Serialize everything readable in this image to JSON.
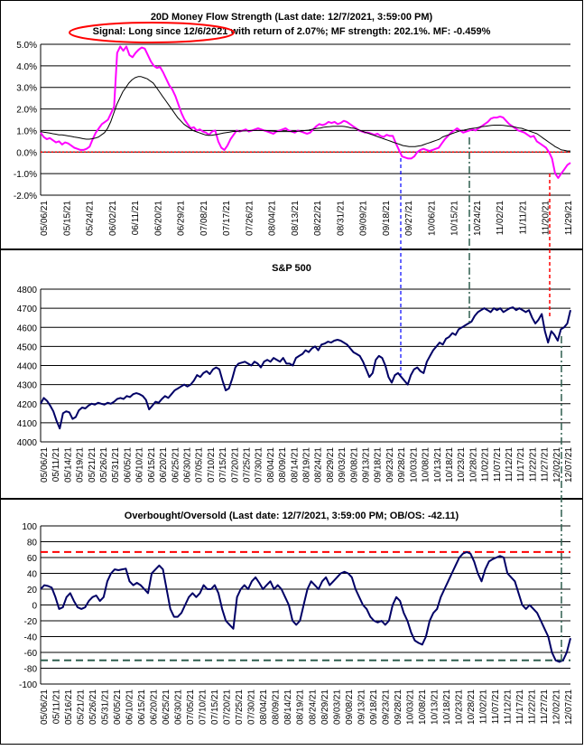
{
  "chart_data": [
    {
      "type": "line",
      "title": "20D Money Flow Strength (Last date: 12/7/2021, 3:59:00 PM)",
      "subtitle": "Signal: Long since 12/6/2021 with return of 2.07%; MF strength: 202.1%. MF: -0.459%",
      "ylim": [
        -2.0,
        5.0
      ],
      "y_ticks": [
        "-2.0%",
        "-1.0%",
        "0.0%",
        "1.0%",
        "2.0%",
        "3.0%",
        "4.0%",
        "5.0%"
      ],
      "x_ticks": [
        "05/06/21",
        "05/15/21",
        "05/24/21",
        "06/02/21",
        "06/11/21",
        "06/20/21",
        "06/29/21",
        "07/08/21",
        "07/17/21",
        "07/26/21",
        "08/04/21",
        "08/13/21",
        "08/22/21",
        "08/31/21",
        "09/09/21",
        "09/18/21",
        "09/27/21",
        "10/06/21",
        "10/15/21",
        "10/24/21",
        "11/02/21",
        "11/11/21",
        "11/20/21",
        "11/29/21"
      ],
      "zero_line": 0.0,
      "series": [
        {
          "color": "#ff00ff",
          "values": [
            0.9,
            0.7,
            0.6,
            0.65,
            0.55,
            0.45,
            0.5,
            0.35,
            0.45,
            0.4,
            0.3,
            0.2,
            0.15,
            0.1,
            0.1,
            0.15,
            0.25,
            0.6,
            0.9,
            1.1,
            1.3,
            1.4,
            1.5,
            1.8,
            2.1,
            4.6,
            4.9,
            4.7,
            4.9,
            4.5,
            4.4,
            4.6,
            4.75,
            4.85,
            4.8,
            4.5,
            4.2,
            4.0,
            3.9,
            3.95,
            3.7,
            3.4,
            3.1,
            2.9,
            2.6,
            2.2,
            1.8,
            1.5,
            1.3,
            1.1,
            1.15,
            1.0,
            1.05,
            0.95,
            0.9,
            0.8,
            0.95,
            1.0,
            0.5,
            0.2,
            0.1,
            0.3,
            0.6,
            0.8,
            1.0,
            0.95,
            1.0,
            1.05,
            0.95,
            1.0,
            1.05,
            1.1,
            1.05,
            1.0,
            0.95,
            0.9,
            0.85,
            0.95,
            1.0,
            1.05,
            1.1,
            1.0,
            0.95,
            0.9,
            1.0,
            0.95,
            0.9,
            0.85,
            0.9,
            1.05,
            1.2,
            1.3,
            1.25,
            1.3,
            1.4,
            1.35,
            1.4,
            1.3,
            1.35,
            1.45,
            1.4,
            1.3,
            1.2,
            1.1,
            1.0,
            0.95,
            0.9,
            0.9,
            0.85,
            0.8,
            0.85,
            0.75,
            0.7,
            0.8,
            0.75,
            0.75,
            0.4,
            0.1,
            -0.2,
            -0.25,
            -0.3,
            -0.3,
            -0.2,
            0.0,
            0.1,
            0.15,
            0.1,
            0.05,
            0.1,
            0.15,
            0.2,
            0.4,
            0.6,
            0.75,
            0.9,
            1.0,
            1.1,
            1.0,
            0.9,
            0.95,
            1.0,
            1.05,
            1.0,
            1.1,
            1.2,
            1.3,
            1.4,
            1.55,
            1.6,
            1.6,
            1.65,
            1.6,
            1.45,
            1.3,
            1.2,
            1.1,
            1.0,
            0.95,
            0.9,
            0.8,
            0.7,
            0.75,
            0.5,
            0.4,
            0.3,
            0.2,
            0.0,
            -0.3,
            -1.0,
            -1.2,
            -1.0,
            -0.8,
            -0.6,
            -0.5
          ]
        },
        {
          "color": "#000000",
          "values": [
            0.95,
            0.92,
            0.9,
            0.88,
            0.85,
            0.83,
            0.8,
            0.8,
            0.78,
            0.75,
            0.73,
            0.7,
            0.68,
            0.65,
            0.62,
            0.6,
            0.6,
            0.62,
            0.65,
            0.7,
            0.8,
            0.9,
            1.1,
            1.4,
            1.8,
            2.2,
            2.5,
            2.8,
            3.0,
            3.2,
            3.35,
            3.45,
            3.5,
            3.5,
            3.45,
            3.4,
            3.3,
            3.2,
            3.0,
            2.8,
            2.6,
            2.4,
            2.2,
            2.0,
            1.8,
            1.6,
            1.45,
            1.3,
            1.2,
            1.1,
            1.0,
            0.95,
            0.9,
            0.85,
            0.8,
            0.78,
            0.78,
            0.8,
            0.82,
            0.85,
            0.88,
            0.9,
            0.92,
            0.95,
            0.96,
            0.97,
            0.98,
            0.98,
            0.99,
            1.0,
            1.0,
            1.0,
            1.0,
            1.0,
            1.0,
            0.98,
            0.97,
            0.96,
            0.95,
            0.95,
            0.95,
            0.95,
            0.95,
            0.95,
            0.96,
            0.97,
            0.98,
            1.0,
            1.02,
            1.05,
            1.08,
            1.1,
            1.12,
            1.15,
            1.17,
            1.18,
            1.2,
            1.2,
            1.2,
            1.2,
            1.18,
            1.15,
            1.12,
            1.1,
            1.05,
            1.0,
            0.95,
            0.9,
            0.85,
            0.8,
            0.75,
            0.7,
            0.65,
            0.6,
            0.55,
            0.5,
            0.45,
            0.4,
            0.35,
            0.3,
            0.28,
            0.25,
            0.25,
            0.25,
            0.28,
            0.3,
            0.35,
            0.4,
            0.45,
            0.5,
            0.55,
            0.6,
            0.7,
            0.75,
            0.8,
            0.85,
            0.9,
            0.95,
            1.0,
            1.02,
            1.05,
            1.08,
            1.1,
            1.12,
            1.15,
            1.18,
            1.2,
            1.22,
            1.24,
            1.25,
            1.25,
            1.25,
            1.24,
            1.22,
            1.2,
            1.18,
            1.15,
            1.12,
            1.1,
            1.05,
            1.0,
            0.95,
            0.9,
            0.85,
            0.75,
            0.65,
            0.55,
            0.45,
            0.35,
            0.25,
            0.18,
            0.1,
            0.08,
            0.05,
            0.05
          ]
        }
      ]
    },
    {
      "type": "line",
      "title": "S&P 500",
      "ylim": [
        4000,
        4800
      ],
      "y_ticks": [
        "4000",
        "4100",
        "4200",
        "4300",
        "4400",
        "4500",
        "4600",
        "4700",
        "4800"
      ],
      "x_ticks": [
        "05/06/21",
        "05/11/21",
        "05/14/21",
        "05/19/21",
        "05/21/21",
        "05/26/21",
        "05/31/21",
        "06/05/21",
        "06/10/21",
        "06/15/21",
        "06/20/21",
        "06/25/21",
        "06/30/21",
        "07/05/21",
        "07/10/21",
        "07/15/21",
        "07/20/21",
        "07/25/21",
        "07/30/21",
        "08/04/21",
        "08/09/21",
        "08/14/21",
        "08/19/21",
        "08/24/21",
        "08/29/21",
        "09/03/21",
        "09/08/21",
        "09/13/21",
        "09/18/21",
        "09/23/21",
        "09/28/21",
        "10/03/21",
        "10/08/21",
        "10/13/21",
        "10/18/21",
        "10/23/21",
        "10/28/21",
        "11/02/21",
        "11/07/21",
        "11/12/21",
        "11/17/21",
        "11/22/21",
        "11/27/21",
        "12/02/21",
        "12/07/21"
      ],
      "series": [
        {
          "color": "#000066",
          "values": [
            4200,
            4230,
            4215,
            4190,
            4160,
            4110,
            4070,
            4150,
            4160,
            4155,
            4120,
            4130,
            4165,
            4180,
            4175,
            4190,
            4200,
            4195,
            4205,
            4200,
            4195,
            4205,
            4200,
            4210,
            4225,
            4230,
            4225,
            4240,
            4235,
            4250,
            4255,
            4250,
            4240,
            4220,
            4170,
            4190,
            4210,
            4205,
            4225,
            4240,
            4230,
            4250,
            4270,
            4280,
            4290,
            4300,
            4290,
            4300,
            4320,
            4350,
            4340,
            4360,
            4370,
            4355,
            4380,
            4390,
            4380,
            4320,
            4270,
            4280,
            4330,
            4390,
            4410,
            4415,
            4420,
            4410,
            4400,
            4420,
            4410,
            4390,
            4420,
            4430,
            4420,
            4440,
            4430,
            4420,
            4440,
            4410,
            4410,
            4400,
            4440,
            4450,
            4460,
            4480,
            4470,
            4490,
            4500,
            4480,
            4510,
            4515,
            4525,
            4520,
            4530,
            4535,
            4530,
            4520,
            4510,
            4490,
            4470,
            4460,
            4450,
            4420,
            4380,
            4340,
            4360,
            4430,
            4450,
            4440,
            4400,
            4340,
            4310,
            4350,
            4360,
            4340,
            4320,
            4300,
            4350,
            4380,
            4390,
            4370,
            4360,
            4420,
            4450,
            4480,
            4500,
            4520,
            4510,
            4540,
            4550,
            4570,
            4560,
            4590,
            4600,
            4610,
            4620,
            4630,
            4660,
            4680,
            4690,
            4700,
            4690,
            4680,
            4700,
            4690,
            4700,
            4680,
            4690,
            4700,
            4705,
            4690,
            4700,
            4690,
            4680,
            4690,
            4650,
            4620,
            4640,
            4670,
            4580,
            4520,
            4580,
            4560,
            4530,
            4590,
            4600,
            4620,
            4690
          ]
        }
      ]
    },
    {
      "type": "line",
      "title": "Overbought/Oversold (Last date: 12/7/2021, 3:59:00 PM; OB/OS: -42.11)",
      "ylim": [
        -100,
        100
      ],
      "y_ticks": [
        "-100",
        "-80",
        "-60",
        "-40",
        "-20",
        "0",
        "20",
        "40",
        "60",
        "80",
        "100"
      ],
      "x_ticks": [
        "05/06/21",
        "05/11/21",
        "05/16/21",
        "05/21/21",
        "05/26/21",
        "05/31/21",
        "06/05/21",
        "06/10/21",
        "06/15/21",
        "06/20/21",
        "06/25/21",
        "06/30/21",
        "07/05/21",
        "07/10/21",
        "07/15/21",
        "07/20/21",
        "07/25/21",
        "07/30/21",
        "08/04/21",
        "08/09/21",
        "08/14/21",
        "08/19/21",
        "08/24/21",
        "08/29/21",
        "09/03/21",
        "09/08/21",
        "09/13/21",
        "09/18/21",
        "09/23/21",
        "09/28/21",
        "10/03/21",
        "10/08/21",
        "10/13/21",
        "10/18/21",
        "10/23/21",
        "10/28/21",
        "11/02/21",
        "11/07/21",
        "11/12/21",
        "11/17/21",
        "11/22/21",
        "11/27/21",
        "12/02/21",
        "12/07/21"
      ],
      "overbought_line": 67,
      "oversold_line": -70,
      "series": [
        {
          "color": "#000066",
          "values": [
            20,
            25,
            24,
            22,
            10,
            -5,
            -3,
            10,
            15,
            5,
            -3,
            -5,
            -3,
            5,
            10,
            12,
            5,
            10,
            30,
            40,
            45,
            44,
            45,
            46,
            30,
            25,
            28,
            25,
            20,
            15,
            40,
            45,
            50,
            45,
            20,
            -5,
            -15,
            -15,
            -10,
            0,
            10,
            15,
            10,
            15,
            25,
            20,
            20,
            25,
            15,
            -5,
            -20,
            -25,
            -30,
            10,
            20,
            25,
            20,
            30,
            35,
            28,
            20,
            25,
            30,
            20,
            25,
            20,
            10,
            0,
            -20,
            -25,
            -20,
            0,
            20,
            30,
            25,
            20,
            30,
            35,
            25,
            30,
            35,
            40,
            42,
            40,
            35,
            20,
            10,
            0,
            -5,
            -15,
            -20,
            -22,
            -20,
            -25,
            -20,
            0,
            10,
            5,
            -10,
            -20,
            -35,
            -45,
            -48,
            -50,
            -40,
            -20,
            -10,
            -5,
            10,
            20,
            30,
            40,
            50,
            60,
            65,
            67,
            65,
            55,
            40,
            30,
            45,
            55,
            58,
            60,
            62,
            60,
            40,
            35,
            30,
            15,
            0,
            -5,
            0,
            -5,
            -10,
            -20,
            -30,
            -40,
            -60,
            -70,
            -72,
            -70,
            -60,
            -42
          ]
        }
      ]
    }
  ]
}
